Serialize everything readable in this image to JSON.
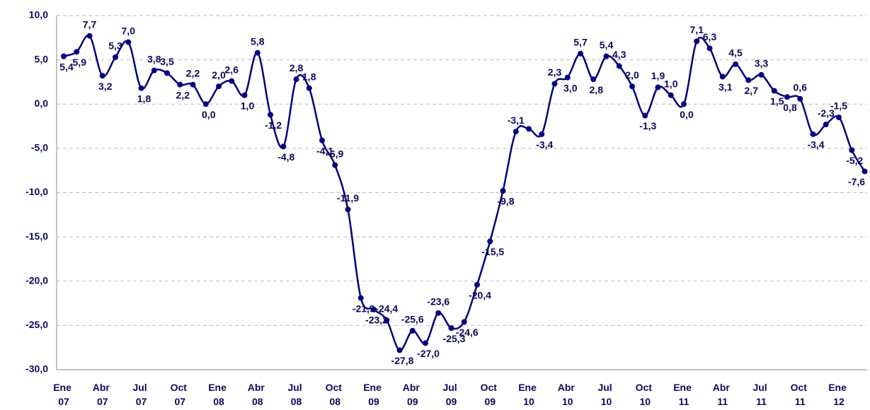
{
  "chart_data": {
    "type": "line",
    "categories": [
      "Ene 07",
      null,
      null,
      "Abr 07",
      null,
      null,
      "Jul 07",
      null,
      null,
      "Oct 07",
      null,
      null,
      "Ene 08",
      null,
      null,
      "Abr 08",
      null,
      null,
      "Jul 08",
      null,
      null,
      "Oct 08",
      null,
      null,
      "Ene 09",
      null,
      null,
      "Abr 09",
      null,
      null,
      "Jul 09",
      null,
      null,
      "Oct 09",
      null,
      null,
      "Ene 10",
      null,
      null,
      "Abr 10",
      null,
      null,
      "Jul 10",
      null,
      null,
      "Oct 10",
      null,
      null,
      "Ene 11",
      null,
      null,
      "Abr 11",
      null,
      null,
      "Jul 11",
      null,
      null,
      "Oct 11",
      null,
      null,
      "Ene 12",
      null,
      null
    ],
    "series": [
      {
        "color": "#000080",
        "values": [
          5.4,
          5.9,
          7.7,
          3.2,
          5.3,
          7.0,
          1.8,
          3.8,
          3.5,
          2.2,
          2.2,
          0.0,
          2.0,
          2.6,
          1.0,
          5.8,
          -1.2,
          -4.8,
          2.8,
          1.8,
          -4.1,
          -6.9,
          -11.9,
          -21.9,
          -23.2,
          -24.4,
          -27.8,
          -25.6,
          -27.0,
          -23.6,
          -25.3,
          -24.6,
          -20.4,
          -15.5,
          -9.8,
          -3.1,
          -2.8,
          -3.4,
          2.3,
          3.0,
          5.7,
          2.8,
          5.4,
          4.3,
          2.0,
          -1.3,
          1.9,
          1.0,
          0.0,
          7.1,
          6.3,
          3.1,
          4.5,
          2.7,
          3.3,
          1.5,
          0.8,
          0.6,
          -3.4,
          -2.3,
          -1.5,
          -5.2,
          -7.6
        ],
        "value_labels": [
          "5,4",
          "5,9",
          "7,7",
          "3,2",
          "5,3",
          "7,0",
          "1,8",
          "3,8",
          "3,5",
          "2,2",
          "2,2",
          "0,0",
          "2,0",
          "2,6",
          "1,0",
          "5,8",
          "-1,2",
          "-4,8",
          "2,8",
          "1,8",
          "-4,1",
          "-6,9",
          "-11,9",
          "-21,9",
          "-23,2",
          "-24,4",
          "-27,8",
          "-25,6",
          "-27,0",
          "-23,6",
          "-25,3",
          "-24,6",
          "-20,4",
          "-15,5",
          "-9,8",
          "-3,1",
          null,
          "-3,4",
          "2,3",
          "3,0",
          "5,7",
          "2,8",
          "5,4",
          "4,3",
          "2,0",
          "-1,3",
          "1,9",
          "1,0",
          "0,0",
          "7,1",
          "6,3",
          "3,1",
          "4,5",
          "2,7",
          "3,3",
          "1,5",
          "0,8",
          "0,6",
          "-3,4",
          "-2,3",
          "-1,5",
          "-5,2",
          "-7,6"
        ]
      }
    ],
    "ylim": [
      -30,
      10
    ],
    "yticks": [
      {
        "value": -30,
        "label": "-30,0"
      },
      {
        "value": -25,
        "label": "-25,0"
      },
      {
        "value": -20,
        "label": "-20,0"
      },
      {
        "value": -15,
        "label": "-15,0"
      },
      {
        "value": -10,
        "label": "-10,0"
      },
      {
        "value": -5,
        "label": "-5,0"
      },
      {
        "value": 0,
        "label": "0,0"
      },
      {
        "value": 5,
        "label": "5,0"
      },
      {
        "value": 10,
        "label": "10,0"
      }
    ],
    "grid": true
  }
}
